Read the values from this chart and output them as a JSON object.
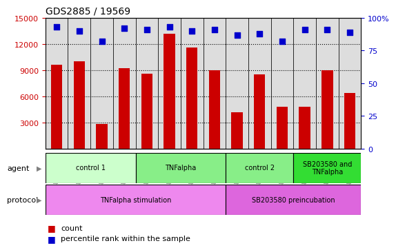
{
  "title": "GDS2885 / 19569",
  "samples": [
    "GSM189807",
    "GSM189809",
    "GSM189811",
    "GSM189813",
    "GSM189806",
    "GSM189808",
    "GSM189810",
    "GSM189812",
    "GSM189815",
    "GSM189817",
    "GSM189819",
    "GSM189814",
    "GSM189816",
    "GSM189818"
  ],
  "counts": [
    9600,
    10000,
    2800,
    9200,
    8600,
    13200,
    11600,
    9000,
    4200,
    8500,
    4800,
    4800,
    9000,
    6400
  ],
  "percentile_ranks": [
    93,
    90,
    82,
    92,
    91,
    93,
    90,
    91,
    87,
    88,
    82,
    91,
    91,
    89
  ],
  "ylim_left": [
    0,
    15000
  ],
  "ylim_right": [
    0,
    100
  ],
  "yticks_left": [
    3000,
    6000,
    9000,
    12000,
    15000
  ],
  "yticks_right": [
    0,
    25,
    50,
    75,
    100
  ],
  "ytick_labels_right": [
    "0",
    "25",
    "50",
    "75",
    "100%"
  ],
  "bar_color": "#cc0000",
  "dot_color": "#0000cc",
  "agent_groups": [
    {
      "label": "control 1",
      "start": 0,
      "end": 4,
      "color": "#ccffcc"
    },
    {
      "label": "TNFalpha",
      "start": 4,
      "end": 8,
      "color": "#88ee88"
    },
    {
      "label": "control 2",
      "start": 8,
      "end": 11,
      "color": "#88ee88"
    },
    {
      "label": "SB203580 and\nTNFalpha",
      "start": 11,
      "end": 14,
      "color": "#33dd33"
    }
  ],
  "protocol_groups": [
    {
      "label": "TNFalpha stimulation",
      "start": 0,
      "end": 8,
      "color": "#ee88ee"
    },
    {
      "label": "SB203580 preincubation",
      "start": 8,
      "end": 14,
      "color": "#dd66dd"
    }
  ],
  "legend_items": [
    {
      "color": "#cc0000",
      "label": "count"
    },
    {
      "color": "#0000cc",
      "label": "percentile rank within the sample"
    }
  ]
}
